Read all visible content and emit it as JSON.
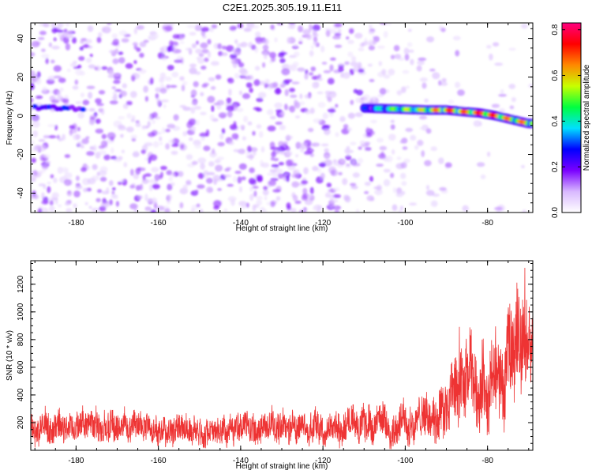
{
  "title": "C2E1.2025.305.19.11.E11",
  "chart_data": [
    {
      "type": "heatmap",
      "xlabel": "Height of straight line (km)",
      "ylabel": "Frequency (Hz)",
      "xlim": [
        -191,
        -69
      ],
      "ylim": [
        -50,
        48
      ],
      "xticks": [
        -180,
        -160,
        -140,
        -120,
        -100,
        -80
      ],
      "yticks": [
        -40,
        -20,
        0,
        20,
        40
      ],
      "xtick_labels": [
        "-180",
        "-160",
        "-140",
        "-120",
        "-100",
        "-80"
      ],
      "ytick_labels": [
        "-40",
        "-20",
        "0",
        "20",
        "40"
      ],
      "colorbar": {
        "label": "Normalized spectral amplitude",
        "range": [
          0,
          0.83
        ],
        "ticks": [
          0,
          0.2,
          0.4,
          0.6,
          0.8
        ],
        "tick_labels": [
          "0.0",
          "0.2",
          "0.4",
          "0.6",
          "0.8"
        ],
        "colors": [
          "#ffffff",
          "#d8b8ff",
          "#7a00ff",
          "#0000ff",
          "#00e0ff",
          "#00ff40",
          "#c8ff00",
          "#ff8800",
          "#ff0000",
          "#ff0080"
        ]
      },
      "ridge": {
        "description": "strong narrow-band signal near 0 Hz",
        "points": [
          {
            "x": -110,
            "y": 4,
            "v": 0.3
          },
          {
            "x": -102,
            "y": 3.5,
            "v": 0.55
          },
          {
            "x": -95,
            "y": 3,
            "v": 0.6
          },
          {
            "x": -90,
            "y": 3,
            "v": 0.75
          },
          {
            "x": -85,
            "y": 2,
            "v": 0.7
          },
          {
            "x": -82,
            "y": 1.5,
            "v": 0.8
          },
          {
            "x": -78,
            "y": 0,
            "v": 0.75
          },
          {
            "x": -74,
            "y": -2,
            "v": 0.65
          },
          {
            "x": -70,
            "y": -4,
            "v": 0.7
          }
        ]
      },
      "weak_ridge_left": {
        "x_range": [
          -190,
          -178
        ],
        "y": 5,
        "v": 0.25
      }
    },
    {
      "type": "line",
      "xlabel": "Height of straight line (km)",
      "ylabel": "SNR (10 * v/v)",
      "xlim": [
        -191,
        -69
      ],
      "ylim": [
        0,
        1370
      ],
      "xticks": [
        -180,
        -160,
        -140,
        -120,
        -100,
        -80
      ],
      "yticks": [
        200,
        400,
        600,
        800,
        1000,
        1200
      ],
      "xtick_labels": [
        "-180",
        "-160",
        "-140",
        "-120",
        "-100",
        "-80"
      ],
      "ytick_labels": [
        "200",
        "400",
        "600",
        "800",
        "1000",
        "1200"
      ],
      "series": [
        {
          "name": "SNR",
          "color": "#ee3333",
          "envelope": [
            {
              "x": -191,
              "mean": 170,
              "amp": 130
            },
            {
              "x": -150,
              "mean": 160,
              "amp": 120
            },
            {
              "x": -120,
              "mean": 165,
              "amp": 130
            },
            {
              "x": -105,
              "mean": 190,
              "amp": 150
            },
            {
              "x": -95,
              "mean": 230,
              "amp": 180
            },
            {
              "x": -88,
              "mean": 360,
              "amp": 300
            },
            {
              "x": -84,
              "mean": 480,
              "amp": 340
            },
            {
              "x": -80,
              "mean": 480,
              "amp": 330
            },
            {
              "x": -76,
              "mean": 470,
              "amp": 350
            },
            {
              "x": -73,
              "mean": 760,
              "amp": 450
            },
            {
              "x": -71,
              "mean": 900,
              "amp": 420
            },
            {
              "x": -69,
              "mean": 680,
              "amp": 240
            }
          ]
        }
      ]
    }
  ]
}
